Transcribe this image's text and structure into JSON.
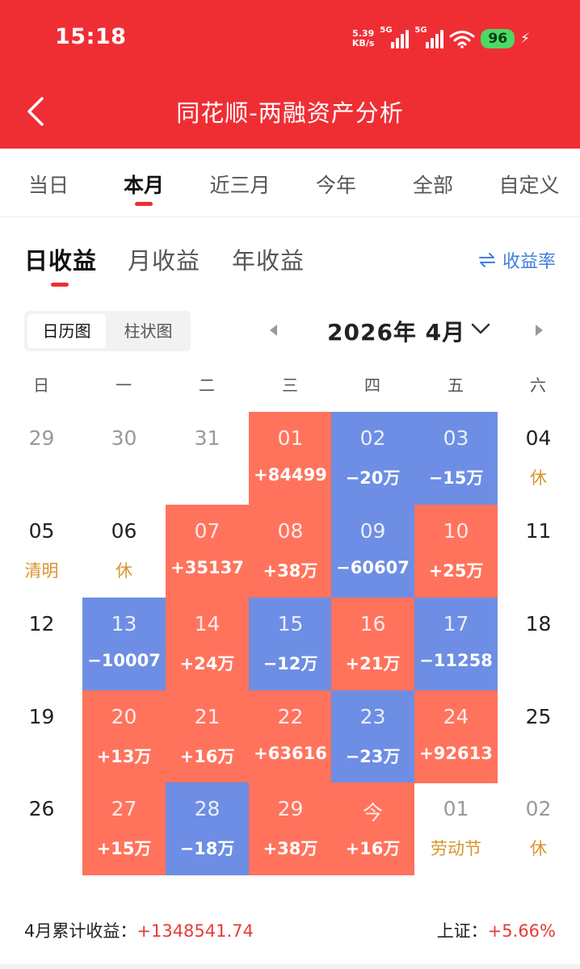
{
  "status_bar": {
    "time": "15:18",
    "net_speed_value": "5.39",
    "net_speed_unit": "KB/s",
    "signal_1_label": "5G",
    "signal_2_label": "5G",
    "battery": "96",
    "icons": [
      "signal-icon",
      "signal-icon",
      "wifi-icon",
      "battery-icon",
      "charging-bolt-icon"
    ]
  },
  "header": {
    "title": "同花顺-两融资产分析",
    "back_icon": "back-arrow-icon",
    "background_color": "#ef2e34"
  },
  "period_tabs": [
    {
      "label": "当日",
      "active": false
    },
    {
      "label": "本月",
      "active": true
    },
    {
      "label": "近三月",
      "active": false
    },
    {
      "label": "今年",
      "active": false
    },
    {
      "label": "全部",
      "active": false
    },
    {
      "label": "自定义",
      "active": false
    }
  ],
  "profit_tabs": [
    {
      "label": "日收益",
      "active": true
    },
    {
      "label": "月收益",
      "active": false
    },
    {
      "label": "年收益",
      "active": false
    }
  ],
  "rate_toggle": {
    "icon": "swap-icon",
    "label": "收益率"
  },
  "view_toggle": {
    "options": [
      "日历图",
      "柱状图"
    ],
    "selected": "日历图"
  },
  "month_selector": {
    "label": "2026年 4月",
    "prev_icon": "triangle-left-icon",
    "next_icon": "triangle-right-icon",
    "dropdown_icon": "chevron-down-icon"
  },
  "weekdays": [
    "日",
    "一",
    "二",
    "三",
    "四",
    "五",
    "六"
  ],
  "colors": {
    "gain": "#ff735d",
    "loss": "#6d8ee4",
    "holiday_text": "#d9952d",
    "accent": "#ef2e34"
  },
  "calendar": [
    [
      {
        "day": "29",
        "sub": "",
        "kind": "faded"
      },
      {
        "day": "30",
        "sub": "",
        "kind": "faded"
      },
      {
        "day": "31",
        "sub": "",
        "kind": "faded"
      },
      {
        "day": "01",
        "sub": "+84499",
        "kind": "up"
      },
      {
        "day": "02",
        "sub": "−20万",
        "kind": "down"
      },
      {
        "day": "03",
        "sub": "−15万",
        "kind": "down"
      },
      {
        "day": "04",
        "sub": "休",
        "kind": "holiday"
      }
    ],
    [
      {
        "day": "05",
        "sub": "清明",
        "kind": "holiday"
      },
      {
        "day": "06",
        "sub": "休",
        "kind": "holiday"
      },
      {
        "day": "07",
        "sub": "+35137",
        "kind": "up"
      },
      {
        "day": "08",
        "sub": "+38万",
        "kind": "up"
      },
      {
        "day": "09",
        "sub": "−60607",
        "kind": "down"
      },
      {
        "day": "10",
        "sub": "+25万",
        "kind": "up"
      },
      {
        "day": "11",
        "sub": "",
        "kind": "plain"
      }
    ],
    [
      {
        "day": "12",
        "sub": "",
        "kind": "plain"
      },
      {
        "day": "13",
        "sub": "−10007",
        "kind": "down"
      },
      {
        "day": "14",
        "sub": "+24万",
        "kind": "up"
      },
      {
        "day": "15",
        "sub": "−12万",
        "kind": "down"
      },
      {
        "day": "16",
        "sub": "+21万",
        "kind": "up"
      },
      {
        "day": "17",
        "sub": "−11258",
        "kind": "down"
      },
      {
        "day": "18",
        "sub": "",
        "kind": "plain"
      }
    ],
    [
      {
        "day": "19",
        "sub": "",
        "kind": "plain"
      },
      {
        "day": "20",
        "sub": "+13万",
        "kind": "up"
      },
      {
        "day": "21",
        "sub": "+16万",
        "kind": "up"
      },
      {
        "day": "22",
        "sub": "+63616",
        "kind": "up"
      },
      {
        "day": "23",
        "sub": "−23万",
        "kind": "down"
      },
      {
        "day": "24",
        "sub": "+92613",
        "kind": "up"
      },
      {
        "day": "25",
        "sub": "",
        "kind": "plain"
      }
    ],
    [
      {
        "day": "26",
        "sub": "",
        "kind": "plain"
      },
      {
        "day": "27",
        "sub": "+15万",
        "kind": "up"
      },
      {
        "day": "28",
        "sub": "−18万",
        "kind": "down"
      },
      {
        "day": "29",
        "sub": "+38万",
        "kind": "up"
      },
      {
        "day": "今",
        "sub": "+16万",
        "kind": "up"
      },
      {
        "day": "01",
        "sub": "劳动节",
        "kind": "holiday-faded"
      },
      {
        "day": "02",
        "sub": "休",
        "kind": "holiday-faded"
      }
    ]
  ],
  "summary": {
    "label": "4月累计收益：",
    "value": "+1348541.74",
    "index_label": "上证：",
    "index_value": "+5.66%"
  }
}
